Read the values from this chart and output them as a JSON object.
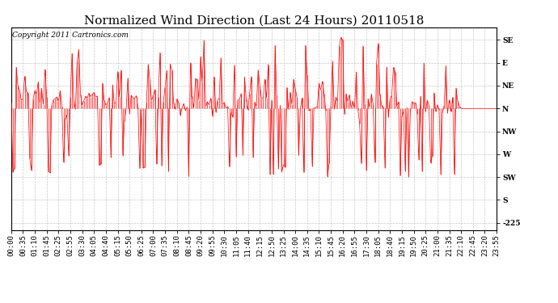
{
  "title": "Normalized Wind Direction (Last 24 Hours) 20110518",
  "copyright_text": "Copyright 2011 Cartronics.com",
  "line_color": "#ff0000",
  "bg_color": "#ffffff",
  "grid_color": "#bbbbbb",
  "ytick_labels": [
    "SE",
    "E",
    "NE",
    "N",
    "NW",
    "W",
    "SW",
    "S",
    "-225"
  ],
  "ytick_values": [
    135,
    90,
    45,
    0,
    -45,
    -90,
    -135,
    -180,
    -225
  ],
  "ylim": [
    -240,
    160
  ],
  "xtick_labels": [
    "00:00",
    "00:35",
    "01:10",
    "01:45",
    "02:25",
    "02:55",
    "03:30",
    "04:05",
    "04:40",
    "05:15",
    "05:50",
    "06:25",
    "07:00",
    "07:35",
    "08:10",
    "08:45",
    "09:20",
    "09:55",
    "10:30",
    "11:05",
    "11:40",
    "12:15",
    "12:50",
    "13:25",
    "14:00",
    "14:35",
    "15:10",
    "15:45",
    "16:20",
    "16:55",
    "17:30",
    "18:05",
    "18:40",
    "19:15",
    "19:50",
    "20:25",
    "21:00",
    "21:35",
    "22:10",
    "22:45",
    "23:20",
    "23:55"
  ],
  "title_fontsize": 11,
  "copyright_fontsize": 6.5,
  "axis_fontsize": 6.5,
  "linewidth": 0.6
}
